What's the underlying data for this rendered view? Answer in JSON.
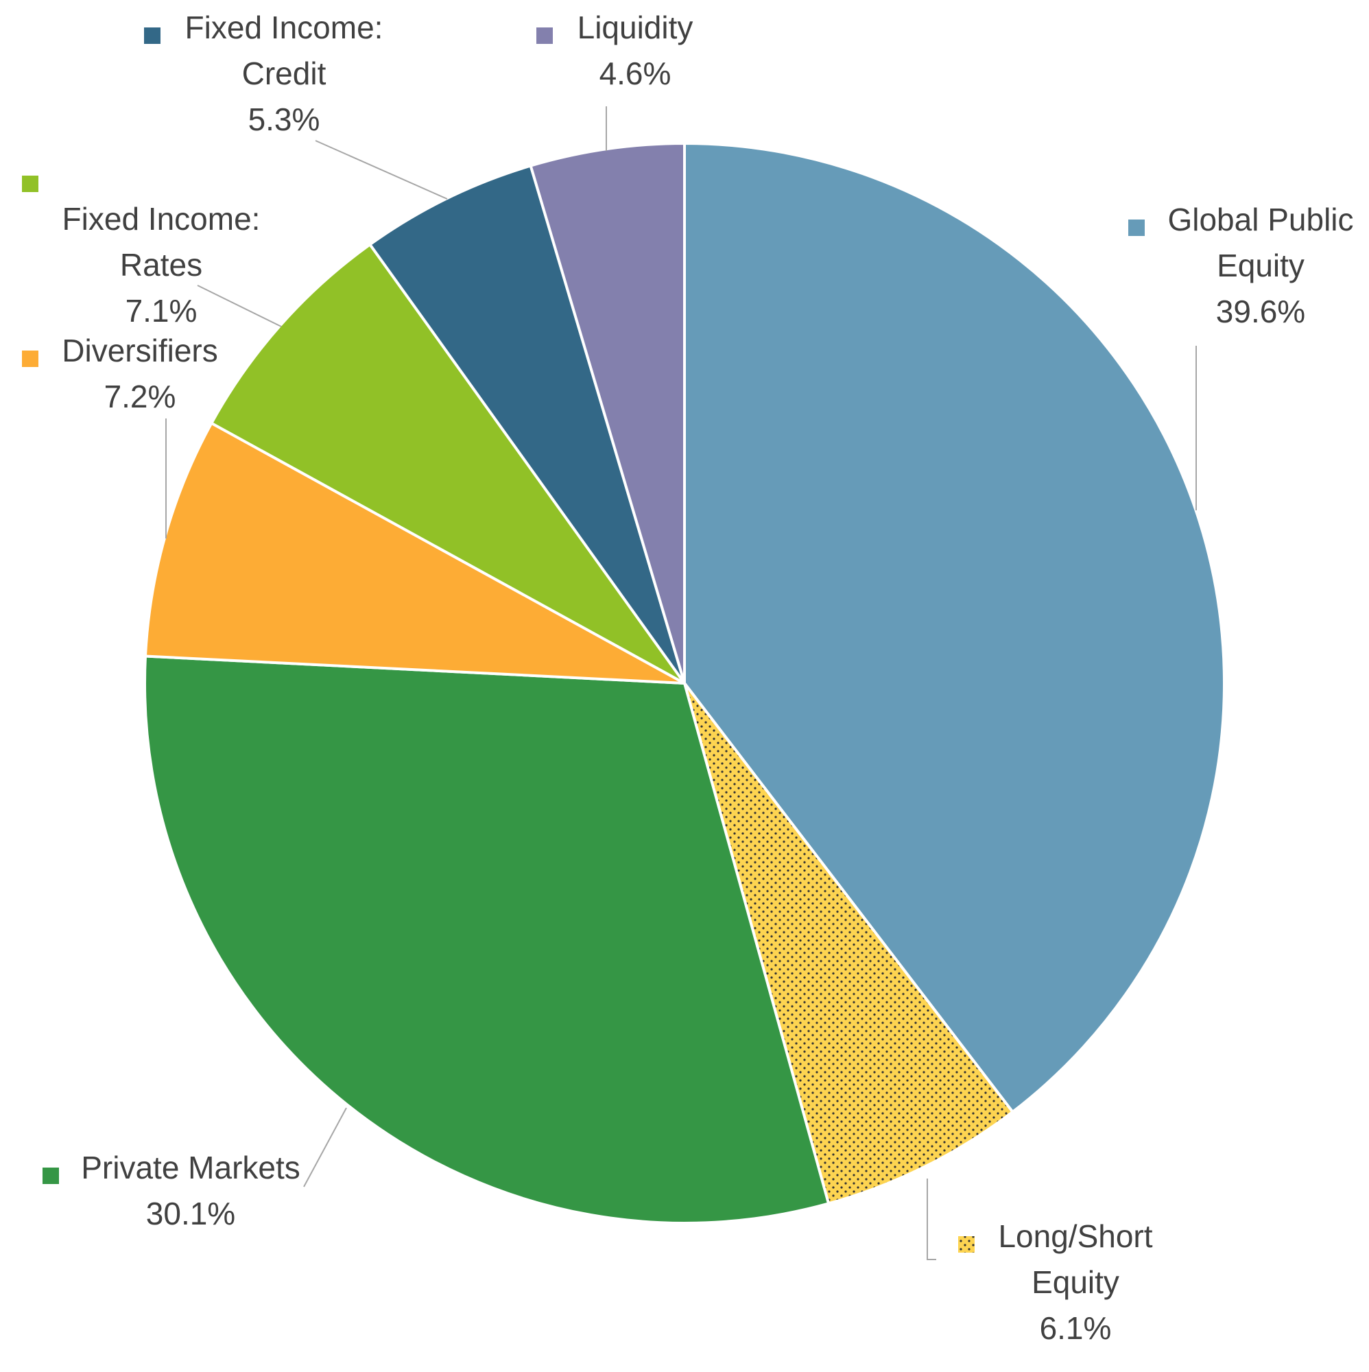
{
  "chart_data": {
    "type": "pie",
    "title": "",
    "start_angle_deg": 0,
    "direction": "clockwise",
    "slices": [
      {
        "name": "Global Public Equity",
        "label_lines": [
          "Global Public",
          "Equity"
        ],
        "value": 39.6,
        "value_label": "39.6%",
        "color": "#669bb8",
        "pattern": "none"
      },
      {
        "name": "Long/Short Equity",
        "label_lines": [
          "Long/Short",
          "Equity"
        ],
        "value": 6.1,
        "value_label": "6.1%",
        "color": "#fdd451",
        "pattern": "dots"
      },
      {
        "name": "Private Markets",
        "label_lines": [
          "Private Markets"
        ],
        "value": 30.1,
        "value_label": "30.1%",
        "color": "#359645",
        "pattern": "none"
      },
      {
        "name": "Diversifiers",
        "label_lines": [
          "Diversifiers"
        ],
        "value": 7.2,
        "value_label": "7.2%",
        "color": "#fdac35",
        "pattern": "none"
      },
      {
        "name": "Fixed Income: Rates",
        "label_lines": [
          "Fixed Income:",
          "Rates"
        ],
        "value": 7.1,
        "value_label": "7.1%",
        "color": "#91c127",
        "pattern": "none"
      },
      {
        "name": "Fixed Income: Credit",
        "label_lines": [
          "Fixed Income:",
          "Credit"
        ],
        "value": 5.3,
        "value_label": "5.3%",
        "color": "#336887",
        "pattern": "none"
      },
      {
        "name": "Liquidity",
        "label_lines": [
          "Liquidity"
        ],
        "value": 4.6,
        "value_label": "4.6%",
        "color": "#8380ad",
        "pattern": "none"
      }
    ],
    "legend": "none",
    "data_labels": "outside-with-leader-lines"
  }
}
